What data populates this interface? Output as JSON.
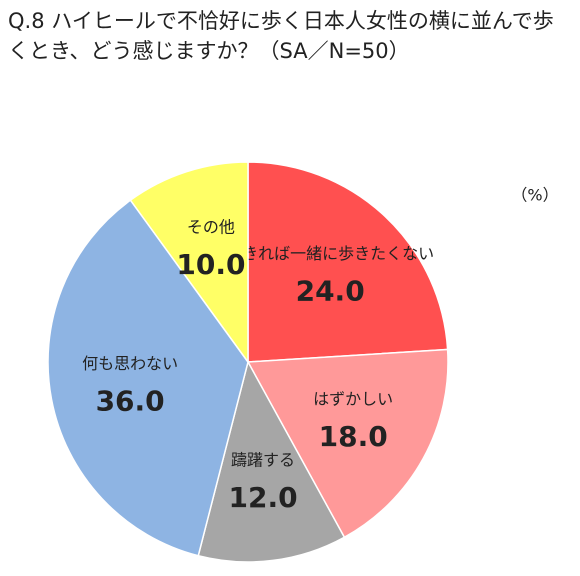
{
  "chart_data": {
    "type": "pie",
    "title": "Q.8 ハイヒールで不恰好に歩く日本人女性の横に並んで歩くとき、どう感じますか？（SA／N=50）",
    "unit_label": "（%）",
    "categories": [
      "できれば一緒に歩きたくない",
      "はずかしい",
      "躊躇する",
      "何も思わない",
      "その他"
    ],
    "values": [
      24.0,
      18.0,
      12.0,
      36.0,
      10.0
    ],
    "value_labels": [
      "24.0",
      "18.0",
      "12.0",
      "36.0",
      "10.0"
    ],
    "colors": [
      "#ff5050",
      "#ff9999",
      "#a6a6a6",
      "#8eb4e3",
      "#ffff66"
    ]
  }
}
